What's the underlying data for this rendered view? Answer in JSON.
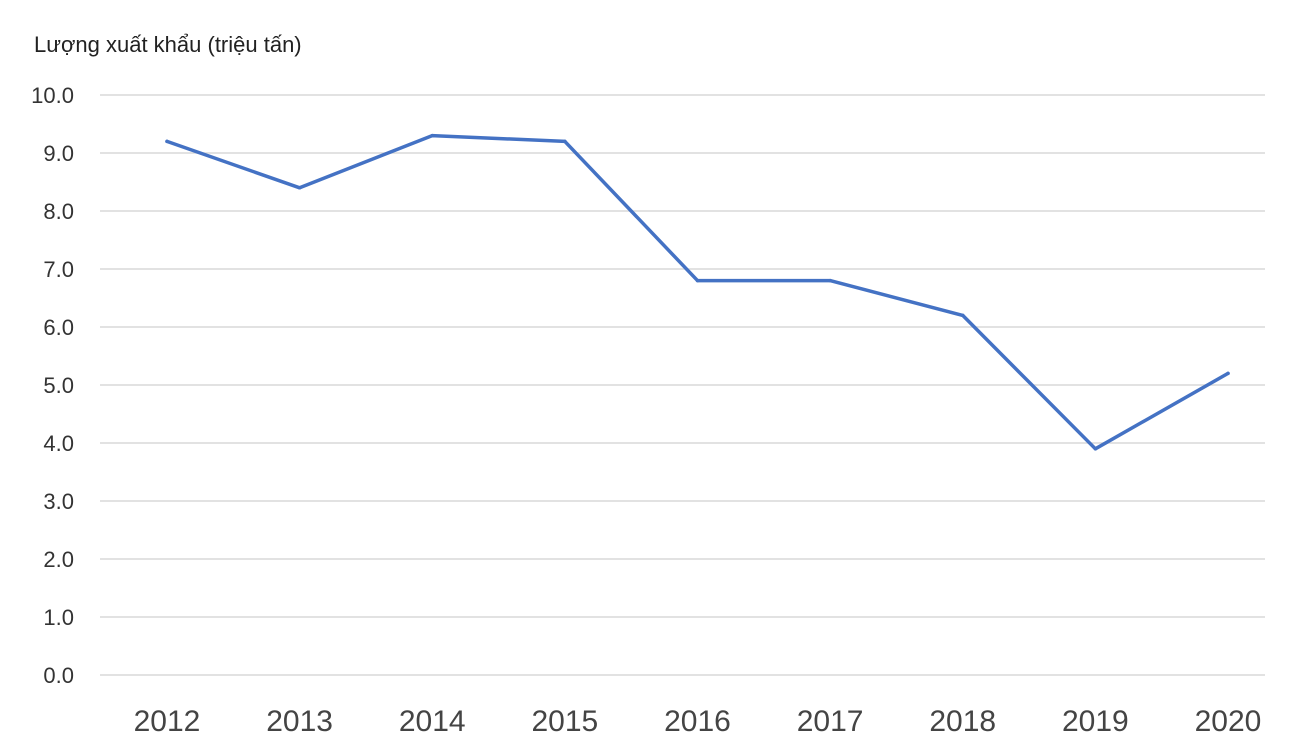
{
  "chart_data": {
    "type": "line",
    "ylabel": "Lượng xuất khẩu (triệu tấn)",
    "xlabel": "",
    "categories": [
      "2012",
      "2013",
      "2014",
      "2015",
      "2016",
      "2017",
      "2018",
      "2019",
      "2020"
    ],
    "series": [
      {
        "values": [
          9.2,
          8.4,
          9.3,
          9.2,
          6.8,
          6.8,
          6.2,
          3.9,
          5.2
        ]
      }
    ],
    "ylim": [
      0,
      10
    ],
    "yticks": [
      "0.0",
      "1.0",
      "2.0",
      "3.0",
      "4.0",
      "5.0",
      "6.0",
      "7.0",
      "8.0",
      "9.0",
      "10.0"
    ],
    "grid": true,
    "colors": {
      "series": "#4472c4",
      "grid": "#d9d9d9"
    }
  }
}
